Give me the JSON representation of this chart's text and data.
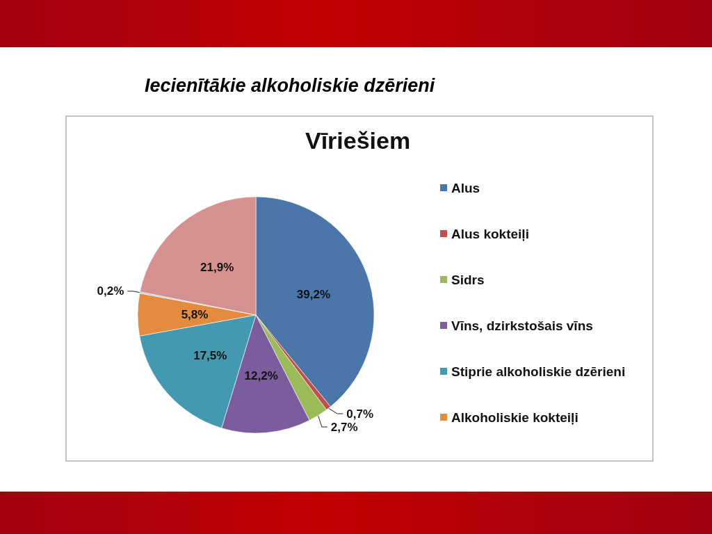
{
  "chart_data": {
    "type": "pie",
    "title": "Iecienītākie alkoholiskie dzērieni",
    "subtitle": "Vīriešiem",
    "categories": [
      "Alus",
      "Alus kokteiļi",
      "Sidrs",
      "Vīns, dzirkstošais vīns",
      "Stiprie alkoholiskie dzērieni",
      "Alkoholiskie kokteiļi",
      null,
      null
    ],
    "values": [
      39.2,
      0.7,
      2.7,
      12.2,
      17.5,
      5.8,
      0.2,
      21.9
    ],
    "colors": [
      "#4a76aa",
      "#c0504d",
      "#9bbb59",
      "#7b5c9c",
      "#4399b0",
      "#e38c3e",
      "#b7c8e0",
      "#d4918f"
    ],
    "value_labels": [
      "39,2%",
      "0,7%",
      "2,7%",
      "12,2%",
      "17,5%",
      "5,8%",
      "0,2%",
      "21,9%"
    ],
    "legend": "right"
  }
}
